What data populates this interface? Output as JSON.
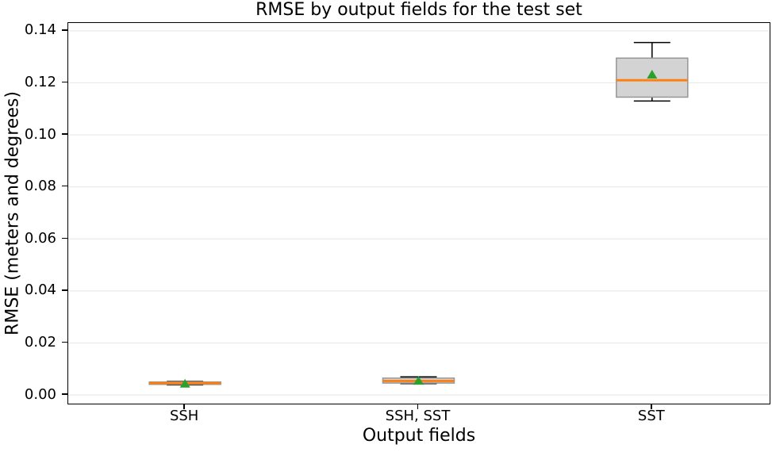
{
  "chart_data": {
    "type": "boxplot",
    "title": "RMSE by output fields for the test set",
    "xlabel": "Output fields",
    "ylabel": "RMSE (meters and degrees)",
    "categories": [
      "SSH",
      "SSH, SST",
      "SST"
    ],
    "ylim": [
      -0.003,
      0.143
    ],
    "yticks": [
      0.0,
      0.02,
      0.04,
      0.06,
      0.08,
      0.1,
      0.12,
      0.14
    ],
    "ytick_labels": [
      "0.00",
      "0.02",
      "0.04",
      "0.06",
      "0.08",
      "0.10",
      "0.12",
      "0.14"
    ],
    "grid": true,
    "legend": false,
    "boxes": [
      {
        "label": "SSH",
        "whislo": 0.0039,
        "q1": 0.0041,
        "med": 0.0046,
        "q3": 0.005,
        "whishi": 0.0052,
        "mean": 0.0044
      },
      {
        "label": "SSH, SST",
        "whislo": 0.0044,
        "q1": 0.0046,
        "med": 0.0054,
        "q3": 0.0065,
        "whishi": 0.007,
        "mean": 0.0055
      },
      {
        "label": "SST",
        "whislo": 0.113,
        "q1": 0.1145,
        "med": 0.121,
        "q3": 0.1295,
        "whishi": 0.1355,
        "mean": 0.1232
      }
    ],
    "colors": {
      "background": "#ffffff",
      "grid": "#e8e8e8",
      "box_fill": "#d3d3d3",
      "box_edge": "#969696",
      "whisker": "#000000",
      "median": "#ff7f0e",
      "mean_marker": "#2ca02c",
      "text": "#000000",
      "spine": "#000000"
    }
  }
}
